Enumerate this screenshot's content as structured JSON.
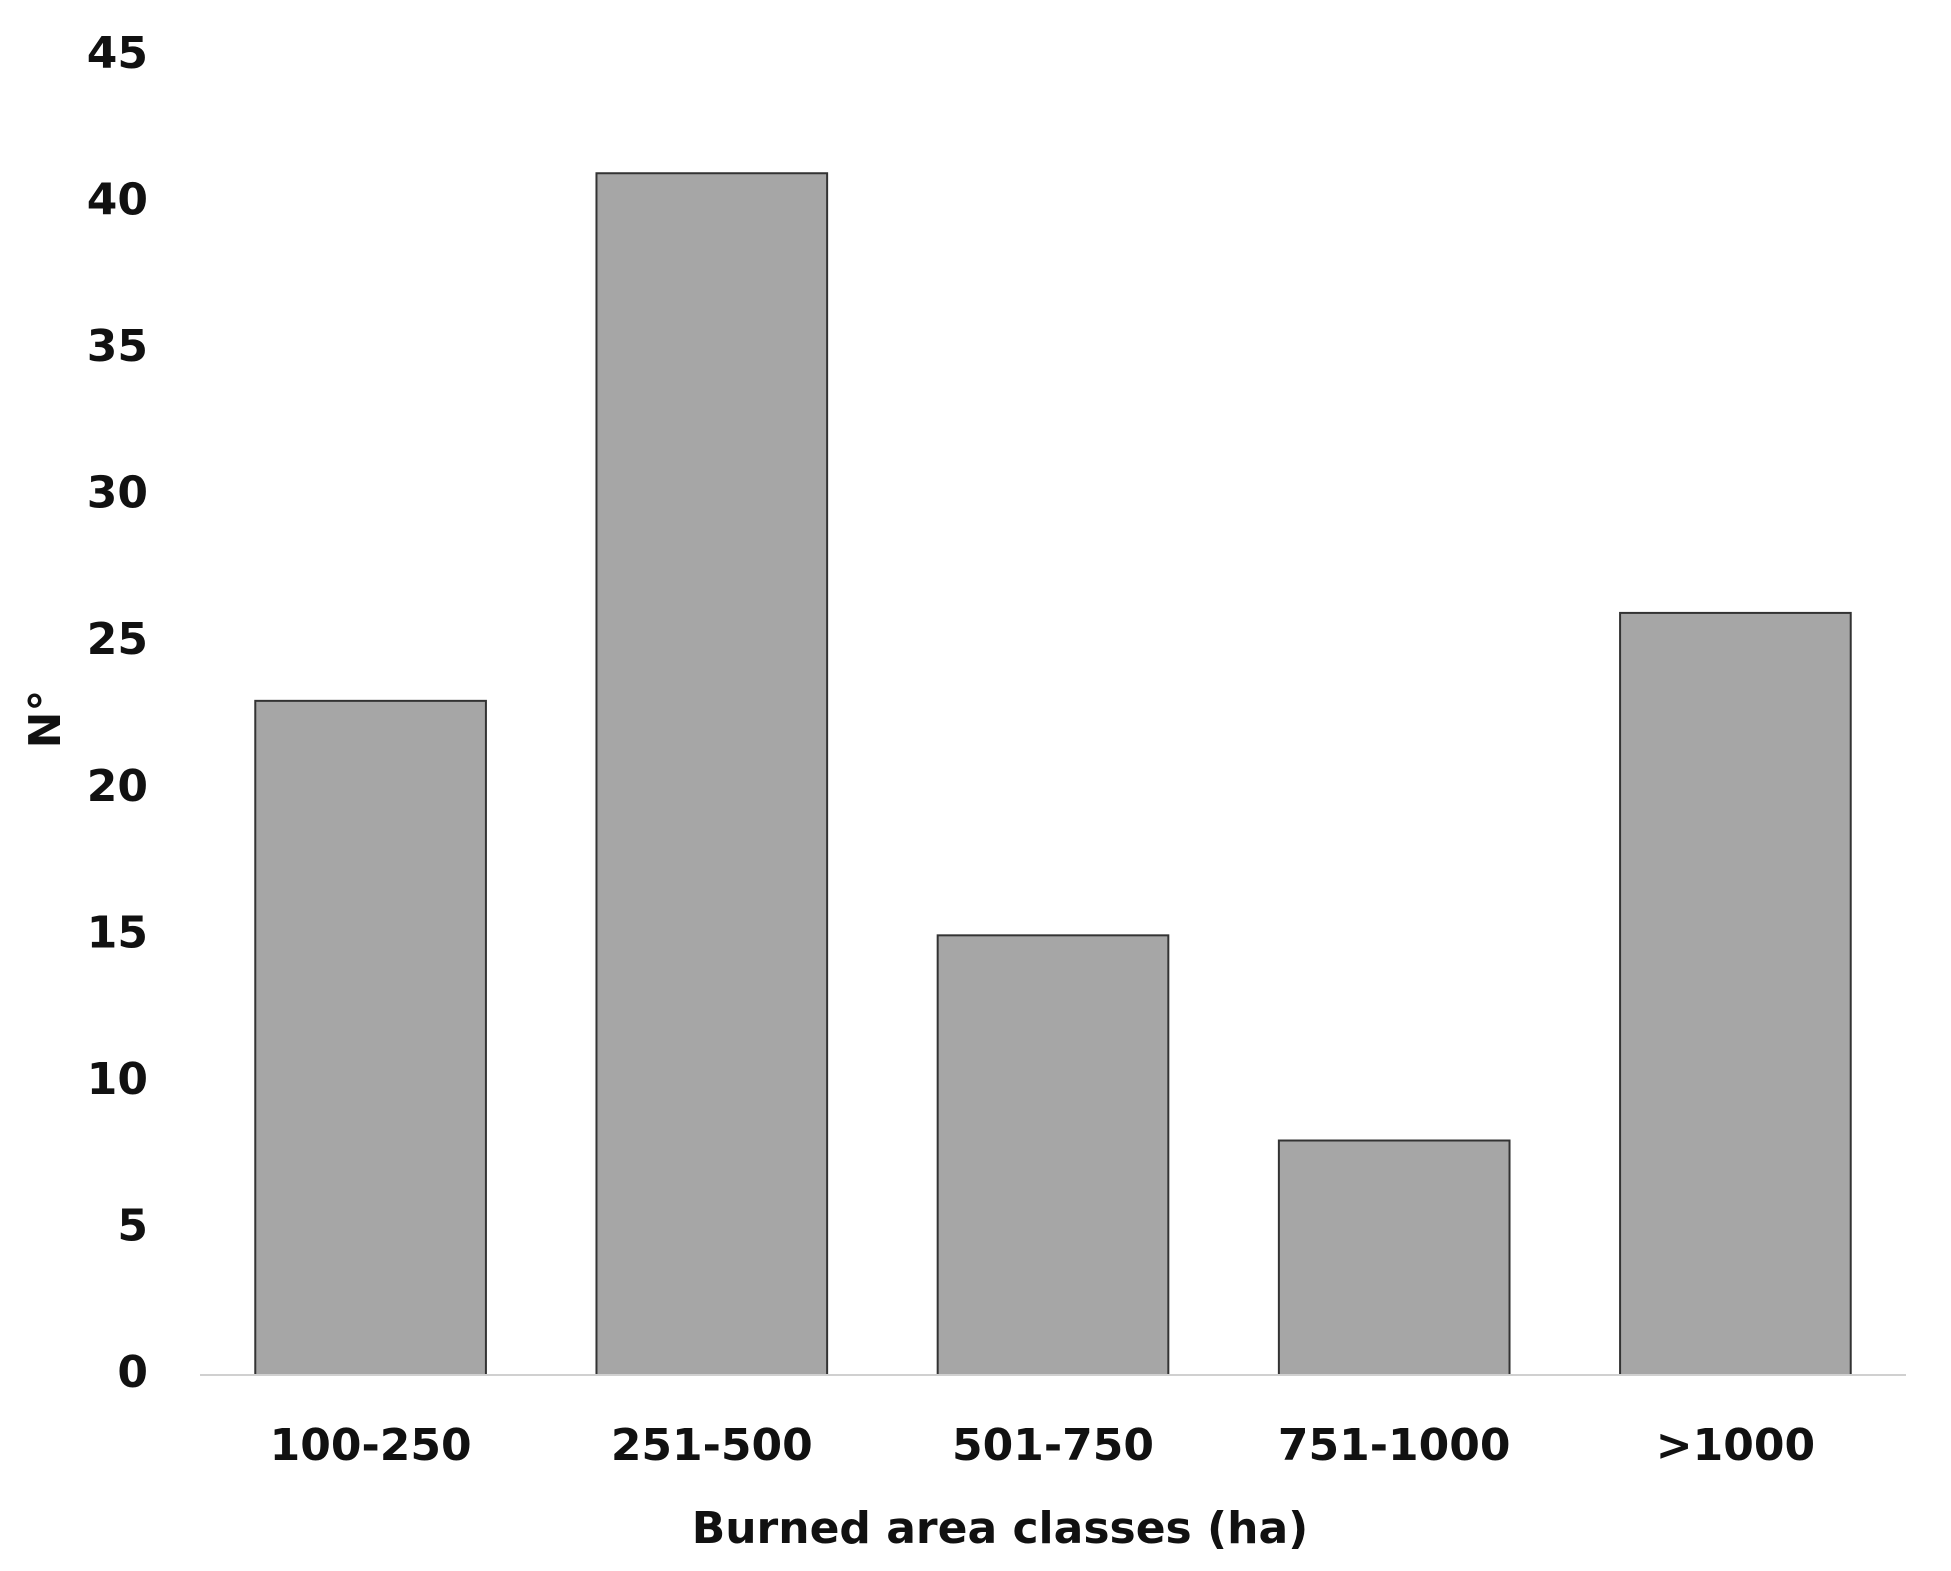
{
  "chart_data": {
    "type": "bar",
    "x_label": "Burned area classes (ha)",
    "y_label": "N°",
    "categories": [
      "100-250",
      "251-500",
      "501-750",
      "751-1000",
      ">1000"
    ],
    "values": [
      23,
      41,
      15,
      8,
      26
    ],
    "color": "#a6a6a6",
    "ylim": [
      0,
      45
    ],
    "yticks": [
      0,
      5,
      10,
      15,
      20,
      25,
      30,
      35,
      40,
      45
    ],
    "grid": false
  }
}
